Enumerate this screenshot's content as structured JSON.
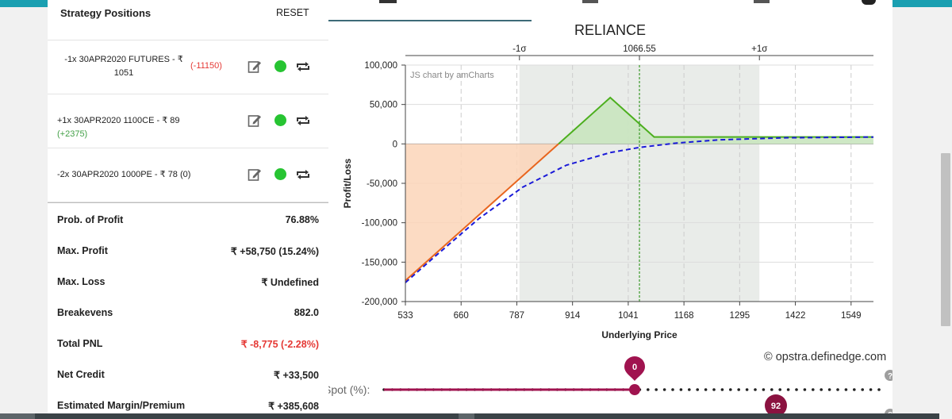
{
  "strategy": {
    "title": "Strategy Positions",
    "reset_label": "RESET",
    "positions": [
      {
        "line1": "-1x  30APR2020  FUTURES  - ₹",
        "line2": "1051",
        "pnl": "(-11150)",
        "pnl_class": "pnl-neg"
      },
      {
        "line1": "+1x  30APR2020  1100CE  - ₹ 89",
        "line2": "",
        "pnl": "(+2375)",
        "pnl_class": "pnl-pos"
      },
      {
        "line1": "-2x  30APR2020  1000PE  - ₹ 78",
        "line2": "",
        "pnl": "(0)",
        "pnl_class": "pnl-zero"
      }
    ],
    "icons": {
      "edit": "edit-icon",
      "status": "status-dot-icon",
      "repeat": "repeat-icon"
    }
  },
  "metrics": [
    {
      "label": "Prob. of Profit",
      "value": "76.88%",
      "color": "normal"
    },
    {
      "label": "Max. Profit",
      "value": "₹ +58,750 (15.24%)",
      "color": "normal"
    },
    {
      "label": "Max. Loss",
      "value": "₹ Undefined",
      "color": "normal"
    },
    {
      "label": "Breakevens",
      "value": "882.0",
      "color": "normal"
    },
    {
      "label": "Total PNL",
      "value": "₹ -8,775 (-2.28%)",
      "color": "red"
    },
    {
      "label": "Net Credit",
      "value": "₹ +33,500",
      "color": "normal"
    },
    {
      "label": "Estimated Margin/Premium",
      "value": "₹ +385,608",
      "color": "normal"
    }
  ],
  "watermark": "© opstra.definedge.com",
  "slider": {
    "label": "Spot (%):",
    "value_badge": "0",
    "second_badge": "92",
    "help_icon": "question-icon",
    "position": 0.5
  },
  "colors": {
    "accent": "#1a9fb1",
    "profit_green": "#4caf1e",
    "loss_orange": "#e8651e",
    "slider": "#a0134f"
  },
  "chart_data": {
    "type": "line",
    "title": "RELIANCE",
    "credit": "JS chart by amCharts",
    "xlabel": "Underlying Price",
    "ylabel": "Profit/Loss",
    "xlim": [
      533,
      1600
    ],
    "ylim": [
      -200000,
      100000
    ],
    "x_ticks": [
      "533",
      "660",
      "787",
      "914",
      "1041",
      "1168",
      "1295",
      "1422",
      "1549"
    ],
    "y_ticks": [
      "100,000",
      "50,000",
      "0",
      "-50,000",
      "-100,000",
      "-150,000",
      "-200,000"
    ],
    "y_tick_values": [
      100000,
      50000,
      0,
      -50000,
      -100000,
      -150000,
      -200000
    ],
    "x_tick_values": [
      533,
      660,
      787,
      914,
      1041,
      1168,
      1295,
      1422,
      1549
    ],
    "top_markers": [
      {
        "label": "-1σ",
        "x": 793
      },
      {
        "label": "1066.55",
        "x": 1066.55
      },
      {
        "label": "+1σ",
        "x": 1340
      }
    ],
    "sigma_band": [
      793,
      1340
    ],
    "spot": 1066.55,
    "series": [
      {
        "name": "",
        "style": "solid",
        "points": [
          [
            533,
            -173500
          ],
          [
            882,
            0
          ],
          [
            1000,
            58750
          ],
          [
            1100,
            8750
          ],
          [
            1600,
            8750
          ]
        ]
      },
      {
        "name": "",
        "style": "dashed",
        "points": [
          [
            533,
            -176000
          ],
          [
            600,
            -143000
          ],
          [
            700,
            -95000
          ],
          [
            800,
            -55000
          ],
          [
            900,
            -27000
          ],
          [
            1000,
            -11000
          ],
          [
            1066.55,
            -4500
          ],
          [
            1150,
            1000
          ],
          [
            1250,
            5200
          ],
          [
            1400,
            7800
          ],
          [
            1600,
            8700
          ]
        ]
      }
    ]
  }
}
